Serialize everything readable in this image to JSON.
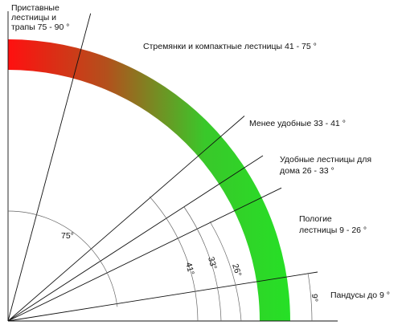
{
  "labels": {
    "ladders": [
      "Приставные",
      "лестницы и",
      "трапы 75 - 90 °"
    ],
    "stepladders": "Стремянки и компактные лестницы 41 - 75 °",
    "less_convenient": "Менее удобные 33 - 41 °",
    "comfortable": [
      "Удобные лестницы для",
      "дома 26 - 33 °"
    ],
    "gentle": [
      "Пологие",
      "лестницы 9 - 26 °"
    ],
    "ramps": "Пандусы до 9 °"
  },
  "angle_marks": {
    "a75": "75°",
    "a41": "41°",
    "a33": "33°",
    "a26": "26°",
    "a9": "9°"
  },
  "angles_deg": [
    9,
    26,
    33,
    41,
    75
  ],
  "colors": {
    "arc_red": "#ff1010",
    "arc_brown": "#b3501c",
    "arc_green": "#26e026",
    "lines": "#111111"
  }
}
